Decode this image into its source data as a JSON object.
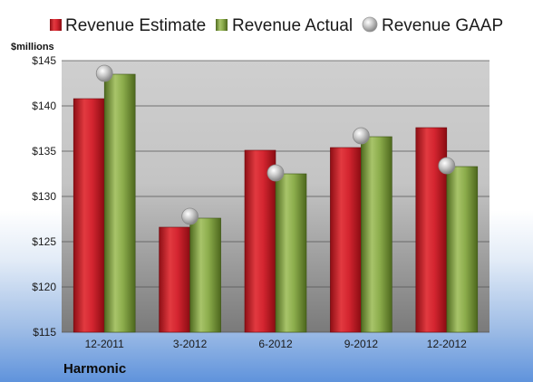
{
  "chart_data": {
    "type": "bar",
    "categories": [
      "12-2011",
      "3-2012",
      "6-2012",
      "9-2012",
      "12-2012"
    ],
    "series": [
      {
        "name": "Revenue Estimate",
        "kind": "bar",
        "color": "#c8202a",
        "values": [
          140.8,
          126.6,
          135.1,
          135.4,
          137.6
        ]
      },
      {
        "name": "Revenue Actual",
        "kind": "bar",
        "color": "#7a9a3a",
        "values": [
          143.5,
          127.6,
          132.5,
          136.6,
          133.3
        ]
      },
      {
        "name": "Revenue GAAP",
        "kind": "marker",
        "color": "#b8b8b8",
        "values": [
          143.6,
          127.8,
          132.6,
          136.7,
          133.4
        ]
      }
    ],
    "ylabel": "$millions",
    "ylim": [
      115,
      145
    ],
    "yticks": [
      115,
      120,
      125,
      130,
      135,
      140,
      145
    ],
    "ytick_labels": [
      "$115",
      "$120",
      "$125",
      "$130",
      "$135",
      "$140",
      "$145"
    ],
    "grid": true,
    "legend": "top",
    "footer": "Harmonic"
  }
}
